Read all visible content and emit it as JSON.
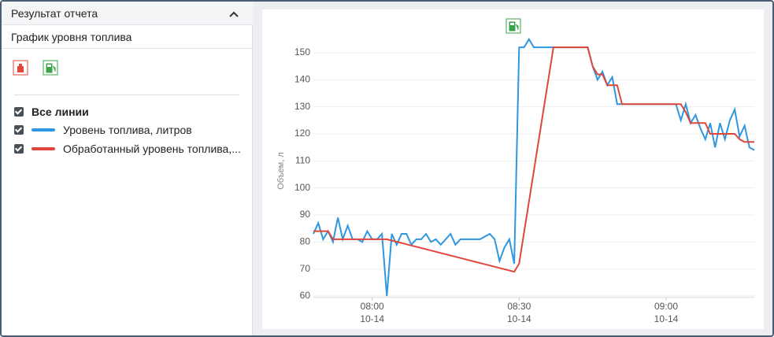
{
  "sidebar": {
    "title": "Результат отчета",
    "report": "График уровня топлива",
    "all_lines": "Все линии"
  },
  "chart_data": {
    "type": "line",
    "ylabel": "Объем, л",
    "xlim": [
      "10-14 07:48",
      "10-14 09:18"
    ],
    "xticks": [
      {
        "value": "10-14 08:00",
        "label": "08:00",
        "date": "10-14"
      },
      {
        "value": "10-14 08:30",
        "label": "08:30",
        "date": "10-14"
      },
      {
        "value": "10-14 09:00",
        "label": "09:00",
        "date": "10-14"
      }
    ],
    "ylim": [
      59.5,
      156
    ],
    "yticks": [
      60,
      70,
      80,
      90,
      100,
      110,
      120,
      130,
      140,
      150
    ],
    "grid": true,
    "series": [
      {
        "name": "Уровень топлива, литров",
        "color": "#2f96e0",
        "x": [
          "10-14 07:48",
          "10-14 07:49",
          "10-14 07:50",
          "10-14 07:51",
          "10-14 07:52",
          "10-14 07:53",
          "10-14 07:54",
          "10-14 07:55",
          "10-14 07:56",
          "10-14 07:57",
          "10-14 07:58",
          "10-14 07:59",
          "10-14 08:00",
          "10-14 08:01",
          "10-14 08:02",
          "10-14 08:03",
          "10-14 08:04",
          "10-14 08:05",
          "10-14 08:06",
          "10-14 08:07",
          "10-14 08:08",
          "10-14 08:09",
          "10-14 08:10",
          "10-14 08:11",
          "10-14 08:12",
          "10-14 08:13",
          "10-14 08:14",
          "10-14 08:15",
          "10-14 08:16",
          "10-14 08:17",
          "10-14 08:18",
          "10-14 08:19",
          "10-14 08:20",
          "10-14 08:22",
          "10-14 08:24",
          "10-14 08:25",
          "10-14 08:26",
          "10-14 08:27",
          "10-14 08:28",
          "10-14 08:29",
          "10-14 08:30",
          "10-14 08:31",
          "10-14 08:32",
          "10-14 08:33",
          "10-14 08:44",
          "10-14 08:45",
          "10-14 08:46",
          "10-14 08:47",
          "10-14 08:48",
          "10-14 08:49",
          "10-14 08:50",
          "10-14 09:02",
          "10-14 09:03",
          "10-14 09:04",
          "10-14 09:05",
          "10-14 09:06",
          "10-14 09:07",
          "10-14 09:08",
          "10-14 09:09",
          "10-14 09:10",
          "10-14 09:11",
          "10-14 09:12",
          "10-14 09:13",
          "10-14 09:14",
          "10-14 09:15",
          "10-14 09:16",
          "10-14 09:17",
          "10-14 09:18"
        ],
        "values": [
          83,
          87,
          81,
          84,
          80,
          89,
          81,
          86,
          81,
          81,
          80,
          84,
          81,
          81,
          83,
          60,
          83,
          79,
          83,
          83,
          79,
          81,
          81,
          83,
          80,
          81,
          79,
          81,
          83,
          79,
          81,
          81,
          81,
          81,
          83,
          81,
          73,
          78,
          81,
          72,
          152,
          152,
          155,
          152,
          152,
          145,
          140,
          143,
          138,
          141,
          131,
          131,
          125,
          131,
          124,
          127,
          122,
          118,
          124,
          115,
          124,
          118,
          125,
          129,
          119,
          123,
          115,
          114
        ]
      },
      {
        "name": "Обработанный уровень топлива,...",
        "color": "#e0463b",
        "x": [
          "10-14 07:48",
          "10-14 07:51",
          "10-14 07:52",
          "10-14 08:03",
          "10-14 08:29",
          "10-14 08:30",
          "10-14 08:37",
          "10-14 08:44",
          "10-14 08:45",
          "10-14 08:46",
          "10-14 08:47",
          "10-14 08:48",
          "10-14 08:50",
          "10-14 08:51",
          "10-14 09:03",
          "10-14 09:04",
          "10-14 09:05",
          "10-14 09:08",
          "10-14 09:09",
          "10-14 09:14",
          "10-14 09:15",
          "10-14 09:16",
          "10-14 09:18"
        ],
        "values": [
          84,
          84,
          81,
          81,
          69,
          72,
          152,
          152,
          145,
          142,
          142,
          138,
          138,
          131,
          131,
          128,
          124,
          124,
          120,
          120,
          118,
          117,
          117
        ]
      }
    ]
  }
}
